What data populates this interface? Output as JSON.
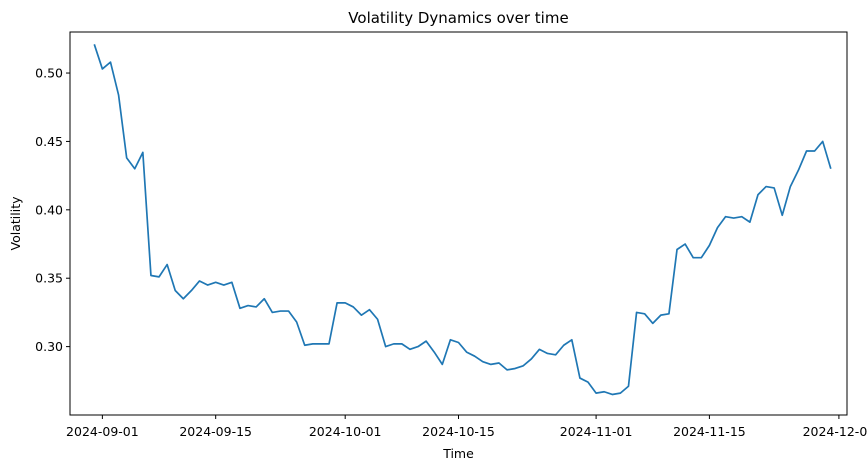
{
  "chart_data": {
    "type": "line",
    "title": "Volatility Dynamics over time",
    "xlabel": "Time",
    "ylabel": "Volatility",
    "grid": false,
    "legend": "none",
    "line_color": "#1f77b4",
    "xlim": [
      "2024-08-28",
      "2024-12-02"
    ],
    "ylim": [
      0.25,
      0.53
    ],
    "x_ticks": [
      "2024-09-01",
      "2024-09-15",
      "2024-10-01",
      "2024-10-15",
      "2024-11-01",
      "2024-11-15",
      "2024-12-01"
    ],
    "y_ticks": [
      "0.30",
      "0.35",
      "0.40",
      "0.45",
      "0.50"
    ],
    "series": [
      {
        "x": [
          "2024-08-31",
          "2024-09-01",
          "2024-09-02",
          "2024-09-03",
          "2024-09-04",
          "2024-09-05",
          "2024-09-06",
          "2024-09-07",
          "2024-09-08",
          "2024-09-09",
          "2024-09-10",
          "2024-09-11",
          "2024-09-12",
          "2024-09-13",
          "2024-09-14",
          "2024-09-15",
          "2024-09-16",
          "2024-09-17",
          "2024-09-18",
          "2024-09-19",
          "2024-09-20",
          "2024-09-21",
          "2024-09-22",
          "2024-09-23",
          "2024-09-24",
          "2024-09-25",
          "2024-09-26",
          "2024-09-27",
          "2024-09-28",
          "2024-09-29",
          "2024-09-30",
          "2024-10-01",
          "2024-10-02",
          "2024-10-03",
          "2024-10-04",
          "2024-10-05",
          "2024-10-06",
          "2024-10-07",
          "2024-10-08",
          "2024-10-09",
          "2024-10-10",
          "2024-10-11",
          "2024-10-12",
          "2024-10-13",
          "2024-10-14",
          "2024-10-15",
          "2024-10-16",
          "2024-10-17",
          "2024-10-18",
          "2024-10-19",
          "2024-10-20",
          "2024-10-21",
          "2024-10-22",
          "2024-10-23",
          "2024-10-24",
          "2024-10-25",
          "2024-10-26",
          "2024-10-27",
          "2024-10-28",
          "2024-10-29",
          "2024-10-30",
          "2024-10-31",
          "2024-11-01",
          "2024-11-02",
          "2024-11-03",
          "2024-11-04",
          "2024-11-05",
          "2024-11-06",
          "2024-11-07",
          "2024-11-08",
          "2024-11-09",
          "2024-11-10",
          "2024-11-11",
          "2024-11-12",
          "2024-11-13",
          "2024-11-14",
          "2024-11-15",
          "2024-11-16",
          "2024-11-17",
          "2024-11-18",
          "2024-11-19",
          "2024-11-20",
          "2024-11-21",
          "2024-11-22",
          "2024-11-23",
          "2024-11-24",
          "2024-11-25",
          "2024-11-26",
          "2024-11-27",
          "2024-11-28",
          "2024-11-29",
          "2024-11-30"
        ],
        "y": [
          0.521,
          0.503,
          0.508,
          0.484,
          0.438,
          0.43,
          0.442,
          0.352,
          0.351,
          0.36,
          0.341,
          0.335,
          0.341,
          0.348,
          0.345,
          0.347,
          0.345,
          0.347,
          0.328,
          0.33,
          0.329,
          0.335,
          0.325,
          0.326,
          0.326,
          0.318,
          0.301,
          0.302,
          0.302,
          0.302,
          0.332,
          0.332,
          0.329,
          0.323,
          0.327,
          0.32,
          0.3,
          0.302,
          0.302,
          0.298,
          0.3,
          0.304,
          0.296,
          0.287,
          0.305,
          0.303,
          0.296,
          0.293,
          0.289,
          0.287,
          0.288,
          0.283,
          0.284,
          0.286,
          0.291,
          0.298,
          0.295,
          0.294,
          0.301,
          0.305,
          0.277,
          0.274,
          0.266,
          0.267,
          0.265,
          0.266,
          0.271,
          0.325,
          0.324,
          0.317,
          0.323,
          0.324,
          0.371,
          0.375,
          0.365,
          0.365,
          0.374,
          0.387,
          0.395,
          0.394,
          0.395,
          0.391,
          0.411,
          0.417,
          0.416,
          0.396,
          0.417,
          0.429,
          0.443,
          0.443,
          0.45,
          0.43
        ]
      }
    ]
  }
}
